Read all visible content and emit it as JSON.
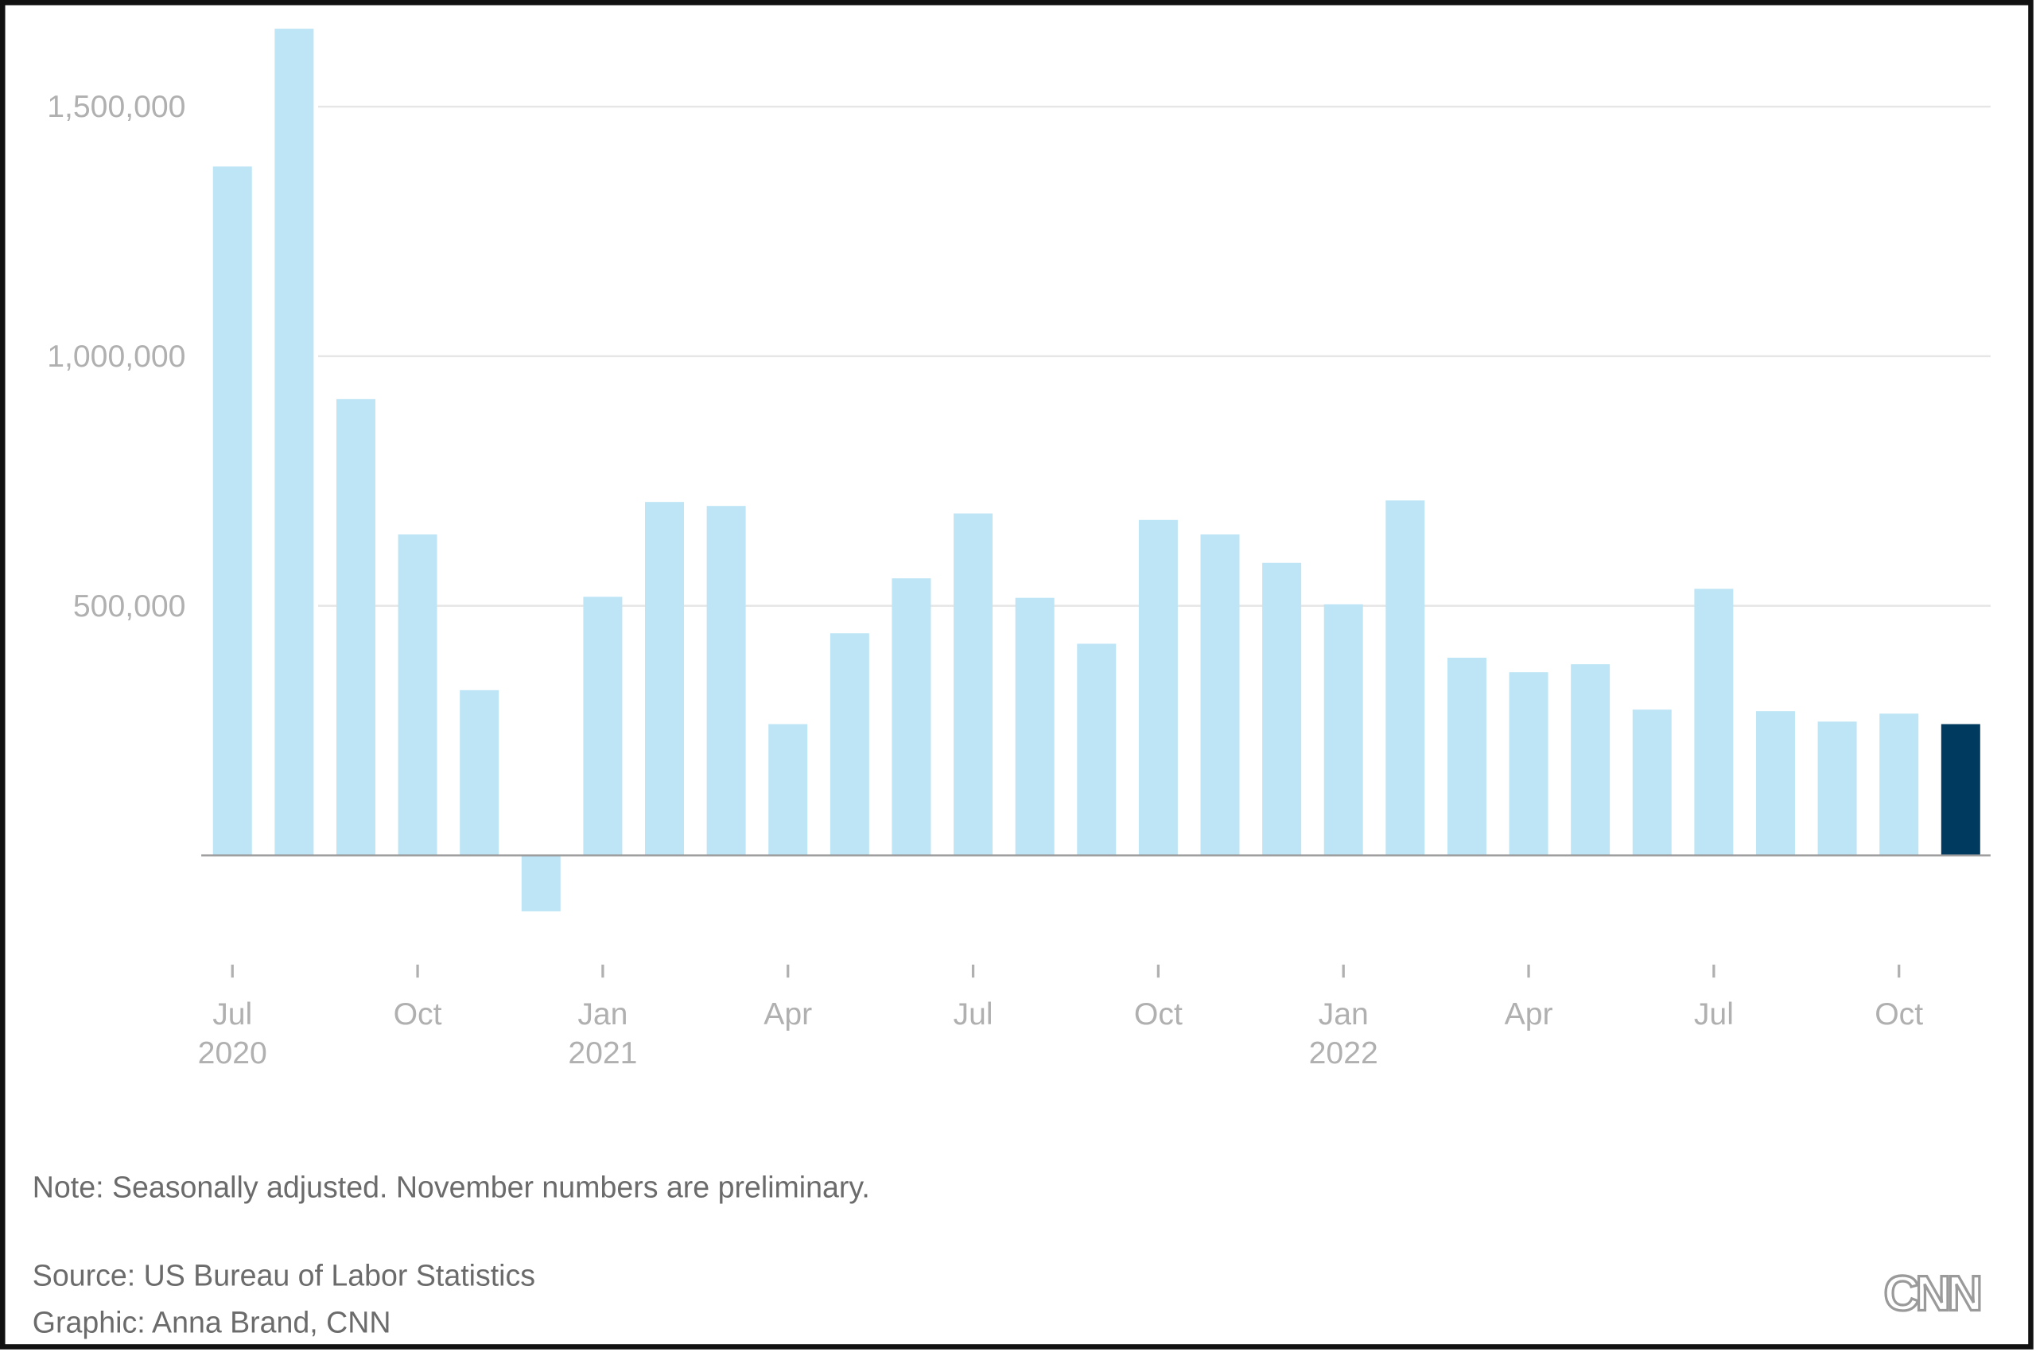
{
  "chart_data": {
    "type": "bar",
    "categories": [
      "Jul",
      null,
      null,
      "Oct",
      null,
      null,
      "Jan",
      null,
      null,
      "Apr",
      null,
      null,
      "Jul",
      null,
      null,
      "Oct",
      null,
      null,
      "Jan",
      null,
      null,
      "Apr",
      null,
      null,
      "Jul",
      null,
      null,
      "Oct",
      null
    ],
    "category_years": [
      "2020",
      null,
      null,
      null,
      null,
      null,
      "2021",
      null,
      null,
      null,
      null,
      null,
      null,
      null,
      null,
      null,
      null,
      null,
      "2022",
      null,
      null,
      null,
      null,
      null,
      null,
      null,
      null,
      null,
      null
    ],
    "values": [
      1380000,
      1656000,
      914000,
      643000,
      331000,
      -112000,
      518000,
      708000,
      700000,
      263000,
      445000,
      555000,
      685000,
      516000,
      424000,
      672000,
      643000,
      586000,
      503000,
      711000,
      396000,
      367000,
      383000,
      292000,
      534000,
      289000,
      268000,
      284000,
      263000
    ],
    "colors": [
      "#bde5f5",
      "#bde5f5",
      "#bde5f5",
      "#bde5f5",
      "#bde5f5",
      "#bde5f5",
      "#bde5f5",
      "#bde5f5",
      "#bde5f5",
      "#bde5f5",
      "#bde5f5",
      "#bde5f5",
      "#bde5f5",
      "#bde5f5",
      "#bde5f5",
      "#bde5f5",
      "#bde5f5",
      "#bde5f5",
      "#bde5f5",
      "#bde5f5",
      "#bde5f5",
      "#bde5f5",
      "#bde5f5",
      "#bde5f5",
      "#bde5f5",
      "#bde5f5",
      "#bde5f5",
      "#bde5f5",
      "#003b5f"
    ],
    "ylim": [
      -200000,
      1700000
    ],
    "yticks": [
      {
        "value": 500000,
        "label": "500,000"
      },
      {
        "value": 1000000,
        "label": "1,000,000"
      },
      {
        "value": 1500000,
        "label": "1,500,000"
      }
    ],
    "grid": true,
    "note": "Note: Seasonally adjusted. November numbers are preliminary.",
    "source": "Source: US Bureau of Labor Statistics",
    "credit": "Graphic: Anna Brand, CNN",
    "logo": "CNN"
  }
}
